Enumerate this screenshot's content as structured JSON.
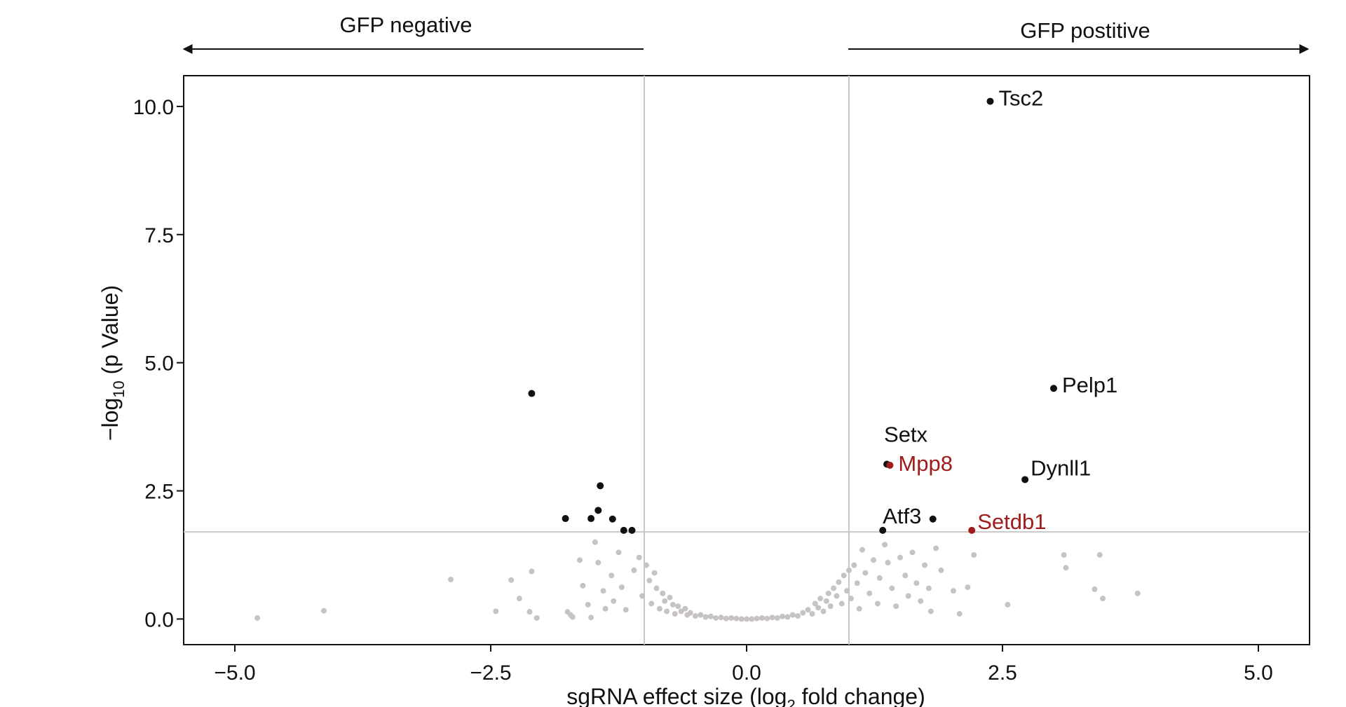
{
  "chart_data": {
    "type": "scatter",
    "title": "",
    "xlabel_main": "sgRNA effect size (log",
    "xlabel_sub": "2",
    "xlabel_tail": " fold change)",
    "ylabel_main": "−log",
    "ylabel_sub": "10",
    "ylabel_tail": " (p Value)",
    "xlim": [
      -5.5,
      5.5
    ],
    "ylim": [
      -0.5,
      10.6
    ],
    "xticks": [
      -5.0,
      -2.5,
      0.0,
      2.5,
      5.0
    ],
    "xtick_labels": [
      "−5.0",
      "−2.5",
      "0.0",
      "2.5",
      "5.0"
    ],
    "yticks": [
      0.0,
      2.5,
      5.0,
      7.5,
      10.0
    ],
    "ytick_labels": [
      "0.0",
      "2.5",
      "5.0",
      "7.5",
      "10.0"
    ],
    "thresholds": {
      "x": [
        -1.0,
        1.0
      ],
      "y": 1.7
    },
    "direction_labels": {
      "negative": "GFP negative",
      "positive": "GFP postitive"
    },
    "colors": {
      "hit": "#111111",
      "highlight": "#a01c1c",
      "background": "#c8c3c3",
      "grid": "#c8c8c8"
    },
    "hits": [
      {
        "gene": "Tsc2",
        "x": 2.38,
        "y": 10.1,
        "color": "hit"
      },
      {
        "gene": "Pelp1",
        "x": 3.0,
        "y": 4.5,
        "color": "hit"
      },
      {
        "gene": "Setx",
        "x": 1.37,
        "y": 3.02,
        "color": "hit"
      },
      {
        "gene": "Mpp8",
        "x": 1.4,
        "y": 3.0,
        "color": "highlight"
      },
      {
        "gene": "Dynll1",
        "x": 2.72,
        "y": 2.72,
        "color": "hit"
      },
      {
        "gene": "Atf3",
        "x": 1.33,
        "y": 1.73,
        "color": "hit"
      },
      {
        "gene": "",
        "x": 1.82,
        "y": 1.95,
        "color": "hit"
      },
      {
        "gene": "Setdb1",
        "x": 2.2,
        "y": 1.73,
        "color": "highlight"
      },
      {
        "gene": "",
        "x": -2.1,
        "y": 4.4,
        "color": "hit"
      },
      {
        "gene": "",
        "x": -1.43,
        "y": 2.6,
        "color": "hit"
      },
      {
        "gene": "",
        "x": -1.45,
        "y": 2.12,
        "color": "hit"
      },
      {
        "gene": "",
        "x": -1.77,
        "y": 1.96,
        "color": "hit"
      },
      {
        "gene": "",
        "x": -1.52,
        "y": 1.96,
        "color": "hit"
      },
      {
        "gene": "",
        "x": -1.31,
        "y": 1.95,
        "color": "hit"
      },
      {
        "gene": "",
        "x": -1.2,
        "y": 1.73,
        "color": "hit"
      },
      {
        "gene": "",
        "x": -1.12,
        "y": 1.73,
        "color": "hit"
      }
    ],
    "background_points": [
      [
        -4.78,
        0.02
      ],
      [
        -4.13,
        0.16
      ],
      [
        -2.89,
        0.77
      ],
      [
        -2.45,
        0.15
      ],
      [
        -2.3,
        0.76
      ],
      [
        -2.22,
        0.4
      ],
      [
        -2.1,
        0.93
      ],
      [
        -2.12,
        0.14
      ],
      [
        -2.05,
        0.02
      ],
      [
        -1.75,
        0.14
      ],
      [
        -1.72,
        0.08
      ],
      [
        -1.7,
        0.04
      ],
      [
        -1.63,
        1.15
      ],
      [
        -1.6,
        0.65
      ],
      [
        -1.55,
        0.28
      ],
      [
        -1.52,
        0.03
      ],
      [
        -1.48,
        1.5
      ],
      [
        -1.45,
        1.1
      ],
      [
        -1.4,
        0.55
      ],
      [
        -1.38,
        0.2
      ],
      [
        -1.32,
        0.85
      ],
      [
        -1.3,
        0.35
      ],
      [
        -1.25,
        1.3
      ],
      [
        -1.22,
        0.62
      ],
      [
        -1.18,
        0.18
      ],
      [
        -1.1,
        0.95
      ],
      [
        -1.05,
        1.2
      ],
      [
        -1.02,
        0.45
      ],
      [
        -0.98,
        1.05
      ],
      [
        -0.95,
        0.75
      ],
      [
        -0.93,
        0.3
      ],
      [
        -0.9,
        0.9
      ],
      [
        -0.88,
        0.6
      ],
      [
        -0.85,
        0.2
      ],
      [
        -0.82,
        0.5
      ],
      [
        -0.8,
        0.35
      ],
      [
        -0.78,
        0.15
      ],
      [
        -0.75,
        0.42
      ],
      [
        -0.72,
        0.28
      ],
      [
        -0.7,
        0.1
      ],
      [
        -0.67,
        0.25
      ],
      [
        -0.64,
        0.15
      ],
      [
        -0.6,
        0.2
      ],
      [
        -0.58,
        0.08
      ],
      [
        -0.55,
        0.12
      ],
      [
        -0.5,
        0.06
      ],
      [
        -0.45,
        0.08
      ],
      [
        -0.4,
        0.04
      ],
      [
        -0.35,
        0.05
      ],
      [
        -0.3,
        0.02
      ],
      [
        -0.25,
        0.03
      ],
      [
        -0.2,
        0.01
      ],
      [
        -0.15,
        0.02
      ],
      [
        -0.1,
        0.01
      ],
      [
        -0.05,
        0.0
      ],
      [
        0.0,
        0.0
      ],
      [
        0.05,
        0.0
      ],
      [
        0.1,
        0.01
      ],
      [
        0.15,
        0.02
      ],
      [
        0.2,
        0.01
      ],
      [
        0.25,
        0.03
      ],
      [
        0.3,
        0.02
      ],
      [
        0.35,
        0.05
      ],
      [
        0.4,
        0.04
      ],
      [
        0.45,
        0.08
      ],
      [
        0.5,
        0.06
      ],
      [
        0.55,
        0.12
      ],
      [
        0.6,
        0.18
      ],
      [
        0.64,
        0.1
      ],
      [
        0.67,
        0.3
      ],
      [
        0.7,
        0.22
      ],
      [
        0.72,
        0.4
      ],
      [
        0.75,
        0.15
      ],
      [
        0.78,
        0.35
      ],
      [
        0.8,
        0.5
      ],
      [
        0.82,
        0.25
      ],
      [
        0.85,
        0.6
      ],
      [
        0.88,
        0.45
      ],
      [
        0.9,
        0.72
      ],
      [
        0.93,
        0.3
      ],
      [
        0.95,
        0.85
      ],
      [
        0.98,
        0.55
      ],
      [
        1.0,
        0.95
      ],
      [
        1.02,
        0.4
      ],
      [
        1.05,
        1.05
      ],
      [
        1.08,
        0.7
      ],
      [
        1.1,
        0.2
      ],
      [
        1.13,
        1.35
      ],
      [
        1.16,
        0.9
      ],
      [
        1.2,
        0.5
      ],
      [
        1.24,
        1.15
      ],
      [
        1.28,
        0.3
      ],
      [
        1.3,
        0.8
      ],
      [
        1.35,
        1.45
      ],
      [
        1.38,
        1.1
      ],
      [
        1.42,
        0.6
      ],
      [
        1.46,
        0.25
      ],
      [
        1.5,
        1.2
      ],
      [
        1.55,
        0.85
      ],
      [
        1.58,
        0.45
      ],
      [
        1.62,
        1.3
      ],
      [
        1.66,
        0.7
      ],
      [
        1.7,
        0.35
      ],
      [
        1.74,
        1.05
      ],
      [
        1.78,
        0.6
      ],
      [
        1.8,
        0.15
      ],
      [
        1.85,
        1.38
      ],
      [
        1.9,
        0.95
      ],
      [
        2.02,
        0.55
      ],
      [
        2.08,
        0.1
      ],
      [
        2.16,
        0.62
      ],
      [
        2.22,
        1.25
      ],
      [
        2.55,
        0.28
      ],
      [
        3.1,
        1.25
      ],
      [
        3.12,
        1.0
      ],
      [
        3.4,
        0.58
      ],
      [
        3.45,
        1.25
      ],
      [
        3.48,
        0.4
      ],
      [
        3.82,
        0.5
      ]
    ]
  }
}
